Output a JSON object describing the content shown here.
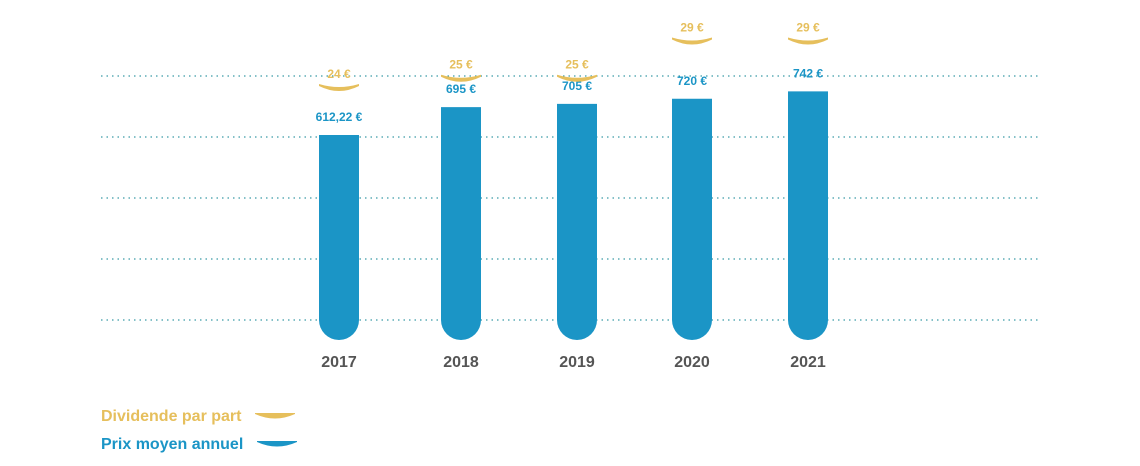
{
  "colors": {
    "price": "#1b95c6",
    "dividend": "#e6bf5c",
    "grid": "#3a9aa6",
    "axis_text": "#555555"
  },
  "legend": {
    "dividend_label": "Dividende par part",
    "price_label": "Prix moyen annuel"
  },
  "chart_data": {
    "type": "bar",
    "categories": [
      "2017",
      "2018",
      "2019",
      "2020",
      "2021"
    ],
    "grid": true,
    "series": [
      {
        "name": "Prix moyen annuel",
        "values": [
          612.22,
          695,
          705,
          720,
          742
        ],
        "labels": [
          "612,22 €",
          "695 €",
          "705 €",
          "720 €",
          "742 €"
        ]
      },
      {
        "name": "Dividende par part",
        "values": [
          24,
          25,
          25,
          29,
          29
        ],
        "labels": [
          "24 €",
          "25 €",
          "25 €",
          "29 €",
          "29 €"
        ]
      }
    ]
  }
}
